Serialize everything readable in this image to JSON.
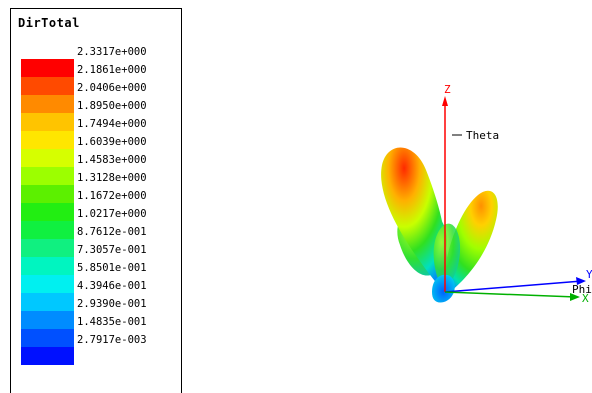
{
  "legend": {
    "title": "DirTotal",
    "values": [
      "2.3317e+000",
      "2.1861e+000",
      "2.0406e+000",
      "1.8950e+000",
      "1.7494e+000",
      "1.6039e+000",
      "1.4583e+000",
      "1.3128e+000",
      "1.1672e+000",
      "1.0217e+000",
      "8.7612e-001",
      "7.3057e-001",
      "5.8501e-001",
      "4.3946e-001",
      "2.9390e-001",
      "1.4835e-001",
      "2.7917e-003"
    ],
    "colors": [
      "#ff0000",
      "#ff4a00",
      "#ff8a00",
      "#ffc400",
      "#ffe600",
      "#d6ff00",
      "#9cff00",
      "#5cf000",
      "#22ee12",
      "#10f040",
      "#10f080",
      "#00f5c0",
      "#00f0f0",
      "#00c8ff",
      "#008cff",
      "#0050ff",
      "#0010ff"
    ]
  },
  "axes": {
    "z_label": "Z",
    "theta_label": "Theta",
    "y_label": "Y",
    "phi_label": "Phi",
    "x_label": "X",
    "z_color": "#ff0000",
    "y_color": "#0000ff",
    "x_color": "#00b000"
  }
}
